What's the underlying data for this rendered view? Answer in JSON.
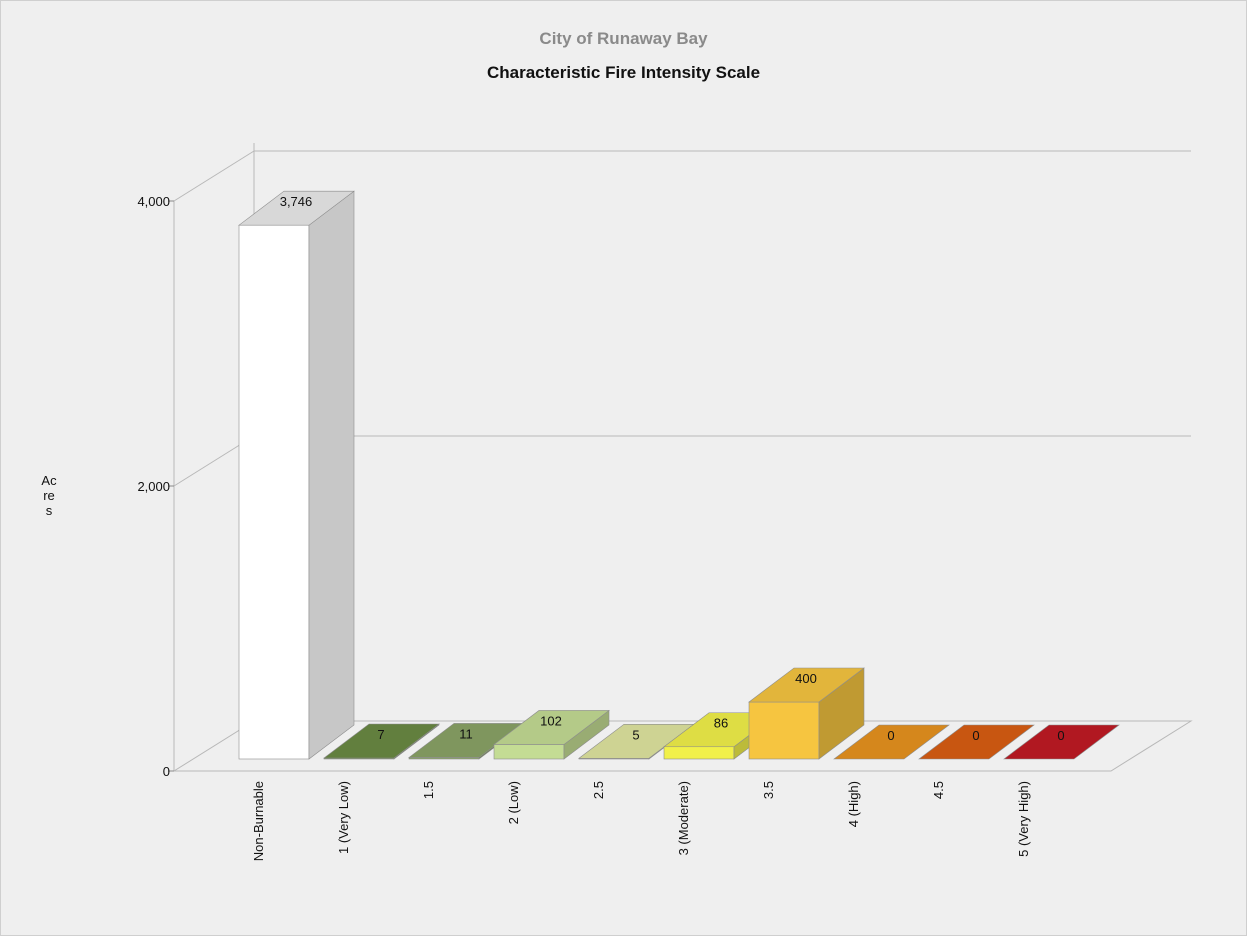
{
  "header": {
    "subtitle": "City of Runaway Bay",
    "title": "Characteristic Fire Intensity Scale"
  },
  "chart_data": {
    "type": "bar",
    "title": "Characteristic Fire Intensity Scale",
    "subtitle": "City of Runaway Bay",
    "xlabel": "",
    "ylabel": "Acres",
    "ylim": [
      0,
      4000
    ],
    "yticks": [
      0,
      2000,
      4000
    ],
    "ytick_labels": [
      "0",
      "2,000",
      "4,000"
    ],
    "grid": true,
    "view": "3d",
    "categories": [
      "Non-Burnable",
      "1 (Very Low)",
      "1.5",
      "2 (Low)",
      "2.5",
      "3 (Moderate)",
      "3.5",
      "4 (High)",
      "4.5",
      "5 (Very High)"
    ],
    "values": [
      3746,
      7,
      11,
      102,
      5,
      86,
      400,
      0,
      0,
      0
    ],
    "value_labels": [
      "3,746",
      "7",
      "11",
      "102",
      "5",
      "86",
      "400",
      "0",
      "0",
      "0"
    ],
    "colors": [
      "#ffffff",
      "#6b8a43",
      "#8aa366",
      "#c4dc94",
      "#e0e5a0",
      "#f1f04a",
      "#f6c540",
      "#e8931e",
      "#d95e12",
      "#c01a24"
    ]
  }
}
